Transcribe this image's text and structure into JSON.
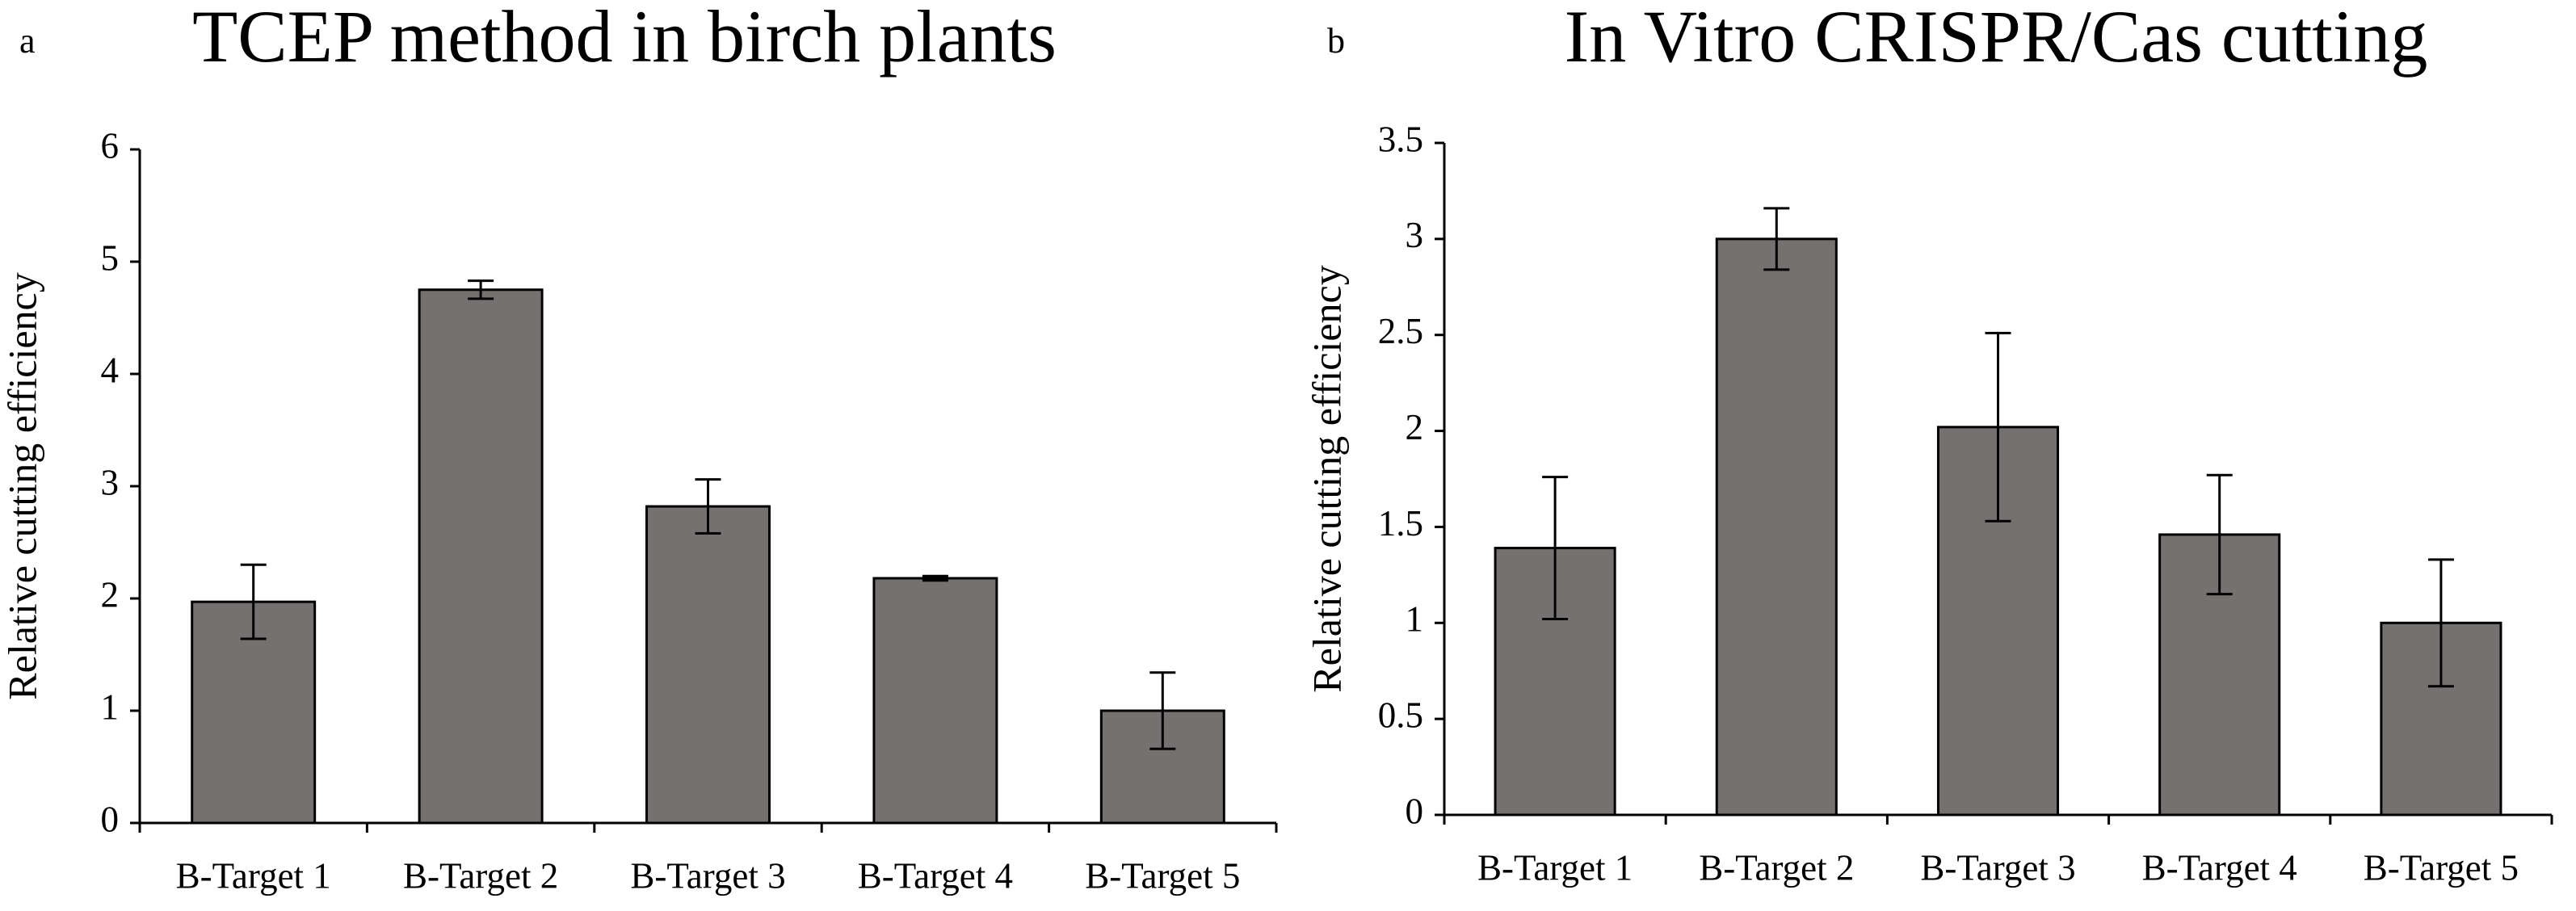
{
  "chart_data": [
    {
      "type": "bar",
      "panel": "a",
      "title": "TCEP method in birch plants",
      "y_label": "Relative cutting efficiency",
      "categories": [
        "B-Target 1",
        "B-Target 2",
        "B-Target 3",
        "B-Target 4",
        "B-Target 5"
      ],
      "values": [
        1.97,
        4.75,
        2.82,
        2.18,
        1.0
      ],
      "errors": [
        0.33,
        0.08,
        0.24,
        0.02,
        0.34
      ],
      "color": "#767171",
      "ylim": [
        0,
        6
      ],
      "yticks": [
        0,
        1,
        2,
        3,
        4,
        5,
        6
      ],
      "grid": false
    },
    {
      "type": "bar",
      "panel": "b",
      "title": "In Vitro CRISPR/Cas cutting",
      "y_label": "Relative cutting efficiency",
      "categories": [
        "B-Target 1",
        "B-Target 2",
        "B-Target 3",
        "B-Target 4",
        "B-Target 5"
      ],
      "values": [
        1.39,
        3.0,
        2.02,
        1.46,
        1.0
      ],
      "errors": [
        0.37,
        0.16,
        0.49,
        0.31,
        0.33
      ],
      "color": "#767171",
      "ylim": [
        0,
        3.5
      ],
      "yticks": [
        0,
        0.5,
        1,
        1.5,
        2,
        2.5,
        3,
        3.5
      ],
      "grid": false
    }
  ]
}
